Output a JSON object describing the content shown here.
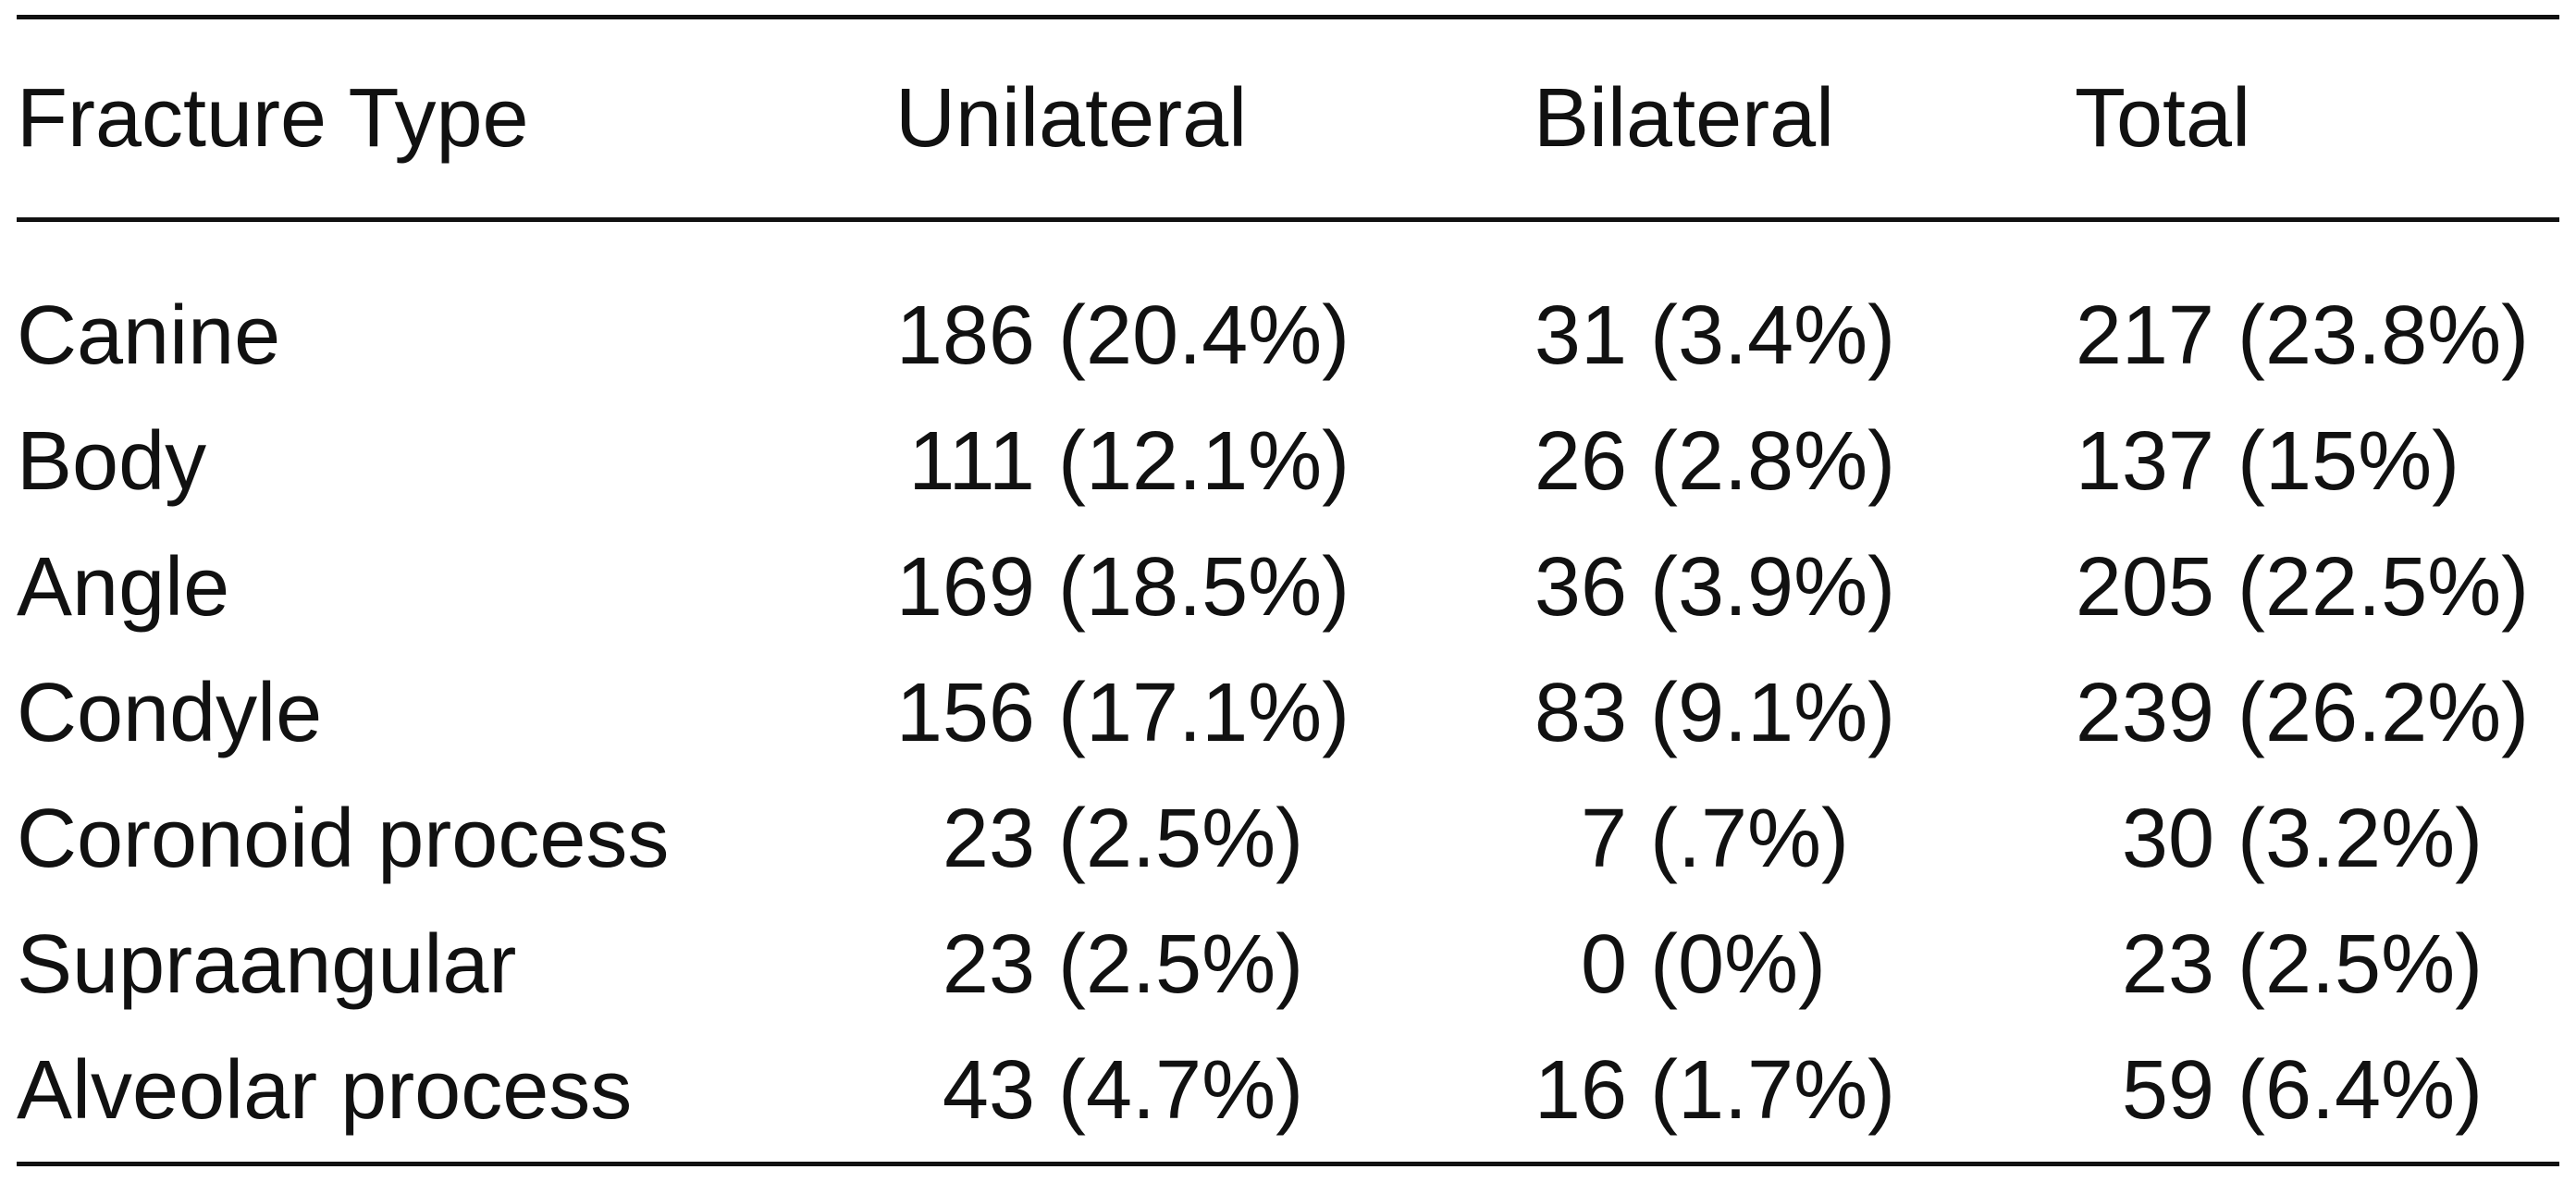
{
  "table": {
    "headers": [
      "Fracture Type",
      "Unilateral",
      "Bilateral",
      "Total"
    ],
    "rows": [
      {
        "type": "Canine",
        "unilateral": "186 (20.4%)",
        "bilateral": "31 (3.4%)",
        "total": "217 (23.8%)"
      },
      {
        "type": "Body",
        "unilateral": "111 (12.1%)",
        "bilateral": "26 (2.8%)",
        "total": "137 (15%)"
      },
      {
        "type": "Angle",
        "unilateral": "169 (18.5%)",
        "bilateral": "36 (3.9%)",
        "total": "205 (22.5%)"
      },
      {
        "type": "Condyle",
        "unilateral": "156 (17.1%)",
        "bilateral": "83 (9.1%)",
        "total": "239 (26.2%)"
      },
      {
        "type": "Coronoid process",
        "unilateral": "23 (2.5%)",
        "bilateral": "7 (.7%)",
        "total": "30 (3.2%)"
      },
      {
        "type": "Supraangular",
        "unilateral": "23 (2.5%)",
        "bilateral": "0 (0%)",
        "total": "23 (2.5%)"
      },
      {
        "type": "Alveolar process",
        "unilateral": "43 (4.7%)",
        "bilateral": "16 (1.7%)",
        "total": "59 (6.4%)"
      }
    ]
  }
}
